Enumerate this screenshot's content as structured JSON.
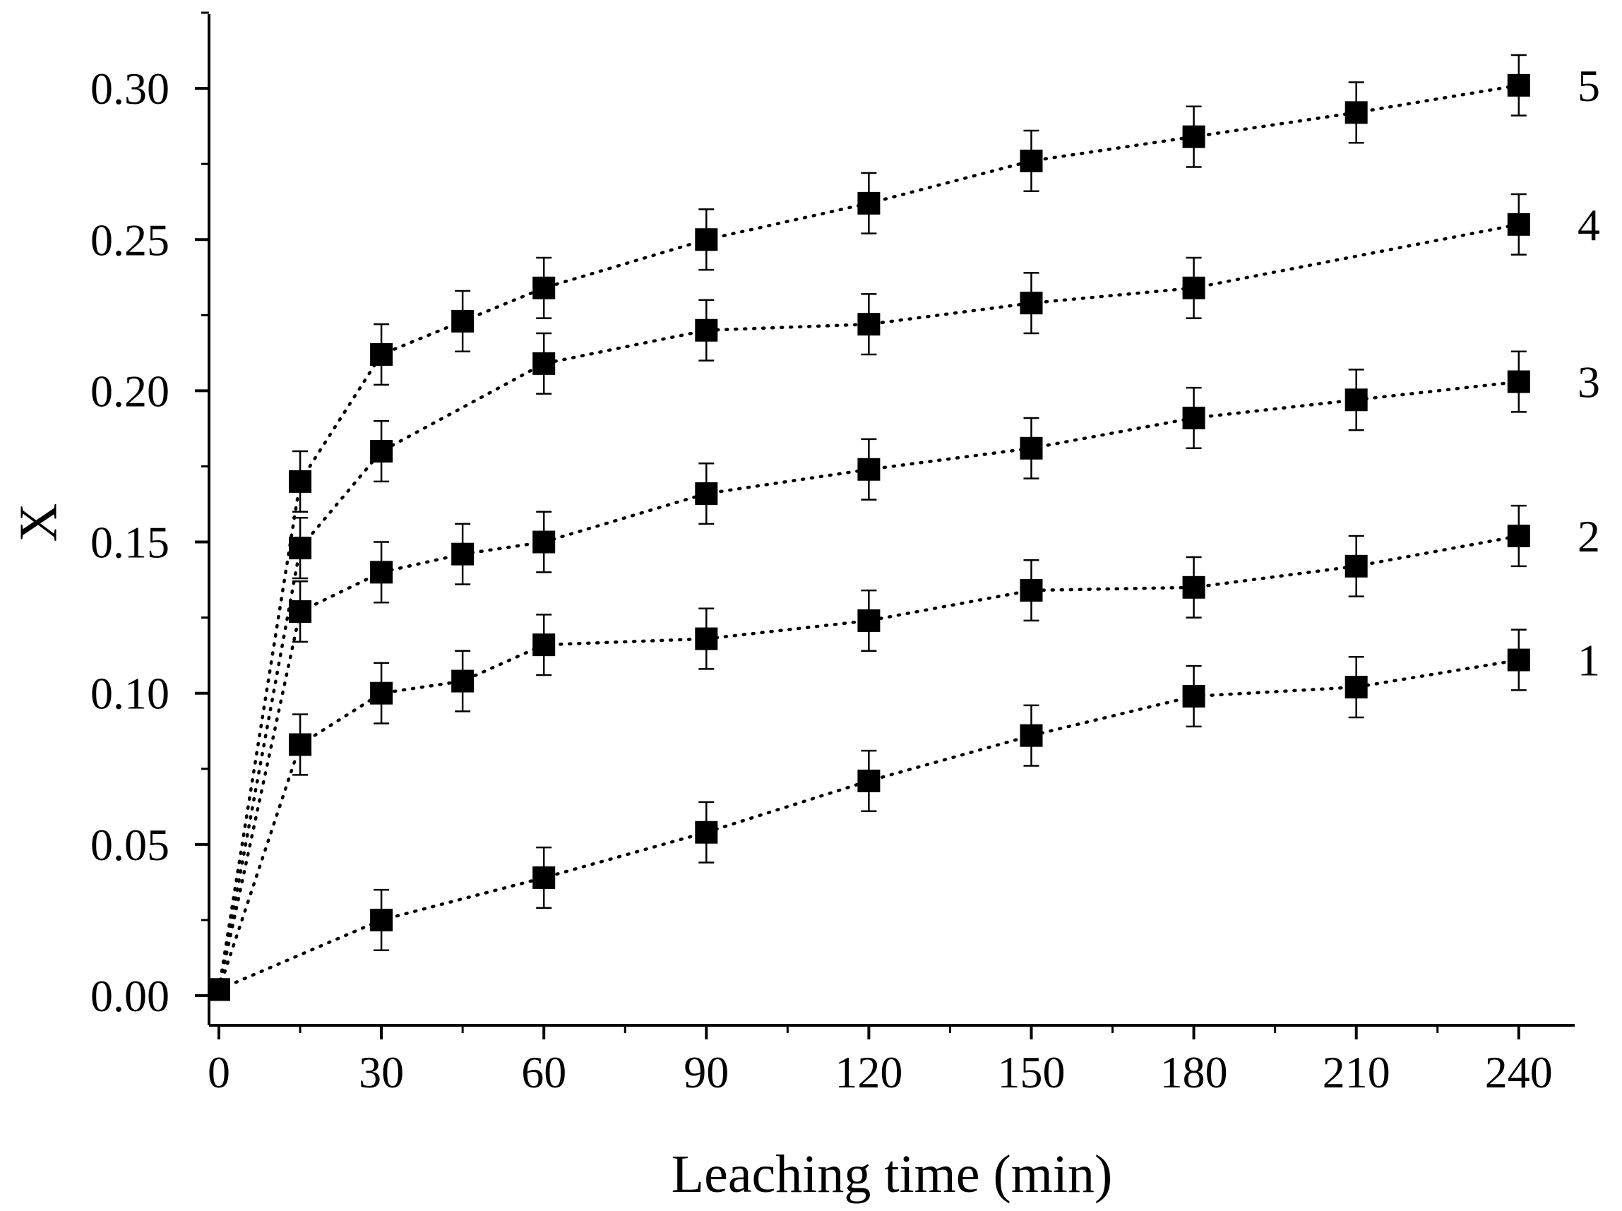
{
  "chart_data": {
    "type": "scatter",
    "title": "",
    "xlabel": "Leaching time (min)",
    "ylabel": "X",
    "xlim": [
      -2,
      250
    ],
    "ylim": [
      -0.01,
      0.325
    ],
    "x_major_ticks": [
      0,
      30,
      60,
      90,
      120,
      150,
      180,
      210,
      240
    ],
    "x_tick_labels": [
      "0",
      "30",
      "60",
      "90",
      "120",
      "150",
      "180",
      "210",
      "240"
    ],
    "x_minor_ticks": [
      15,
      45,
      75,
      105,
      135,
      165,
      195,
      225
    ],
    "y_major_ticks": [
      0.0,
      0.05,
      0.1,
      0.15,
      0.2,
      0.25,
      0.3
    ],
    "y_tick_labels": [
      "0.00",
      "0.05",
      "0.10",
      "0.15",
      "0.20",
      "0.25",
      "0.30"
    ],
    "grid": false,
    "error_bar": 0.01,
    "line_style": "dotted",
    "marker": "square",
    "series": [
      {
        "name": "1",
        "x": [
          0,
          30,
          60,
          90,
          120,
          150,
          180,
          210,
          240
        ],
        "y": [
          0.002,
          0.025,
          0.039,
          0.054,
          0.071,
          0.086,
          0.099,
          0.102,
          0.111
        ]
      },
      {
        "name": "2",
        "x": [
          0,
          15,
          30,
          45,
          60,
          90,
          120,
          150,
          180,
          210,
          240
        ],
        "y": [
          0.002,
          0.083,
          0.1,
          0.104,
          0.116,
          0.118,
          0.124,
          0.134,
          0.135,
          0.142,
          0.152
        ]
      },
      {
        "name": "3",
        "x": [
          0,
          15,
          30,
          45,
          60,
          90,
          120,
          150,
          180,
          210,
          240
        ],
        "y": [
          0.002,
          0.127,
          0.14,
          0.146,
          0.15,
          0.166,
          0.174,
          0.181,
          0.191,
          0.197,
          0.203
        ]
      },
      {
        "name": "4",
        "x": [
          0,
          15,
          30,
          60,
          90,
          120,
          150,
          180,
          240
        ],
        "y": [
          0.002,
          0.148,
          0.18,
          0.209,
          0.22,
          0.222,
          0.229,
          0.234,
          0.255
        ]
      },
      {
        "name": "5",
        "x": [
          0,
          15,
          30,
          45,
          60,
          90,
          120,
          150,
          180,
          210,
          240
        ],
        "y": [
          0.002,
          0.17,
          0.212,
          0.223,
          0.234,
          0.25,
          0.262,
          0.276,
          0.284,
          0.292,
          0.301
        ]
      }
    ]
  }
}
